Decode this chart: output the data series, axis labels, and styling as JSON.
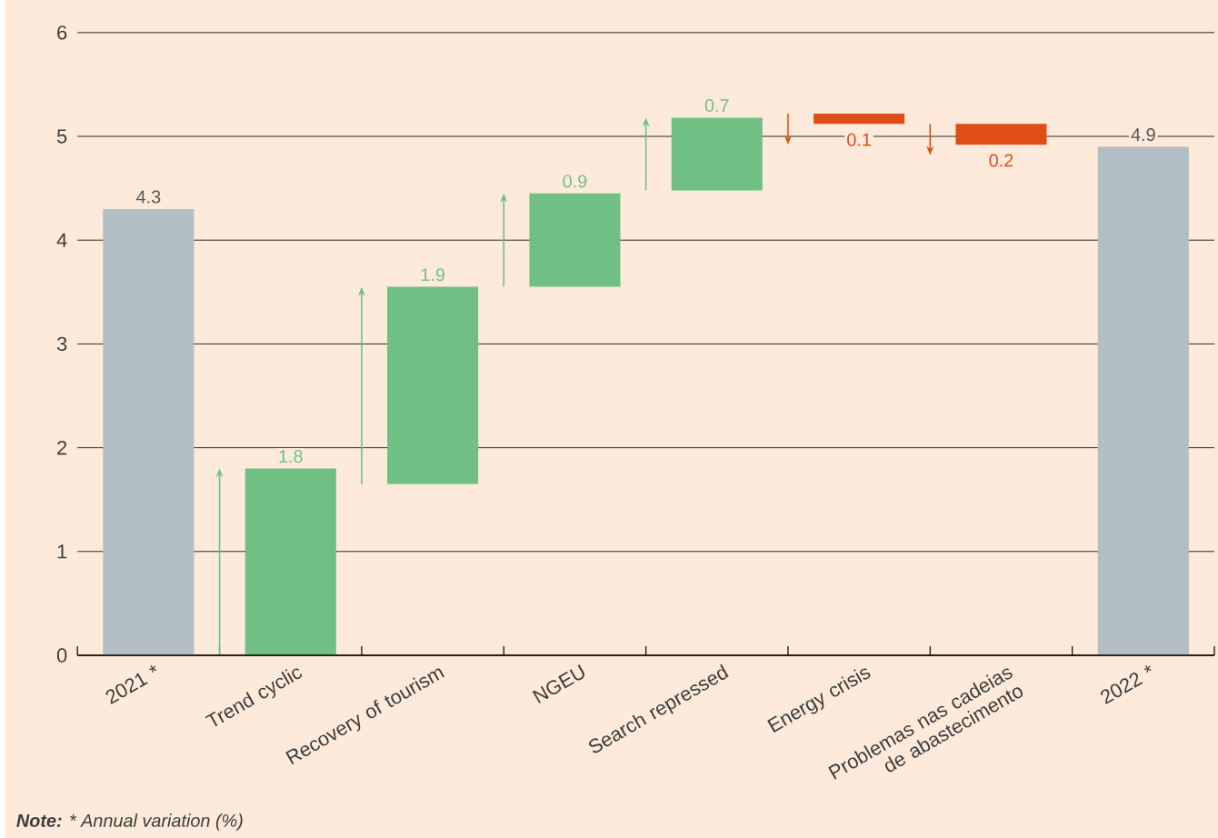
{
  "chart_data": {
    "type": "bar",
    "categories": [
      "2021 *",
      "Trend cyclic",
      "Recovery of tourism",
      "NGEU",
      "Search repressed",
      "Energy crisis",
      "Problemas nas cadeias de abastecimento",
      "2022 *"
    ],
    "values": [
      4.3,
      1.8,
      1.9,
      0.9,
      0.7,
      -0.1,
      -0.2,
      4.9
    ],
    "base": [
      0,
      0,
      1.65,
      3.55,
      4.48,
      5.22,
      5.12,
      0
    ],
    "colors": [
      "#b1bec3",
      "#70bf85",
      "#70bf85",
      "#70bf85",
      "#70bf85",
      "#e04e17",
      "#e04e17",
      "#b1bec3"
    ],
    "value_labels": [
      "4.3",
      "1.8",
      "1.9",
      "0.9",
      "0.7",
      "0.1",
      "0.2",
      "4.9"
    ],
    "ylim": [
      0,
      6
    ],
    "yticks": [
      0,
      1,
      2,
      3,
      4,
      5,
      6
    ],
    "grid": "y",
    "annotations": [
      "**Note:** * Annual variation (%)"
    ]
  }
}
